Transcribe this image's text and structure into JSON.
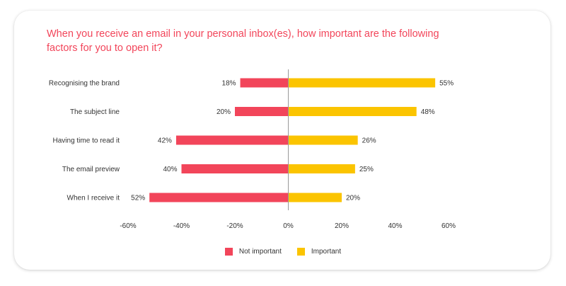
{
  "title": "When you receive an email in your personal inbox(es), how important are the following factors for you to open it?",
  "colors": {
    "not_important": "#f2455a",
    "important": "#fbc400",
    "title": "#f2455a"
  },
  "chart_data": {
    "type": "bar",
    "orientation": "horizontal",
    "stacked": "diverging",
    "categories": [
      "Recognising the brand",
      "The subject line",
      "Having time to read it",
      "The email preview",
      "When I receive it"
    ],
    "series": [
      {
        "name": "Not important",
        "values": [
          -18,
          -20,
          -42,
          -40,
          -52
        ],
        "labels": [
          "18%",
          "20%",
          "42%",
          "40%",
          "52%"
        ],
        "color": "#f2455a"
      },
      {
        "name": "Important",
        "values": [
          55,
          48,
          26,
          25,
          20
        ],
        "labels": [
          "55%",
          "48%",
          "26%",
          "25%",
          "20%"
        ],
        "color": "#fbc400"
      }
    ],
    "xlim": [
      -60,
      60
    ],
    "xticks": [
      -60,
      -40,
      -20,
      0,
      20,
      40,
      60
    ],
    "xtick_labels": [
      "-60%",
      "-40%",
      "-20%",
      "0%",
      "20%",
      "40%",
      "60%"
    ],
    "legend_position": "bottom",
    "grid": false
  },
  "legend": [
    {
      "label": "Not important",
      "color": "#f2455a"
    },
    {
      "label": "Important",
      "color": "#fbc400"
    }
  ]
}
